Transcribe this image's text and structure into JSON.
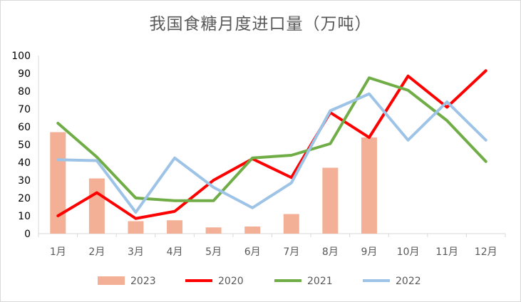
{
  "chart_data": {
    "type": "bar+line",
    "title": "我国食糖月度进口量（万吨）",
    "categories": [
      "1月",
      "2月",
      "3月",
      "4月",
      "5月",
      "6月",
      "7月",
      "8月",
      "9月",
      "10月",
      "11月",
      "12月"
    ],
    "ylim": [
      0,
      100
    ],
    "yticks": [
      0,
      10,
      20,
      30,
      40,
      50,
      60,
      70,
      80,
      90,
      100
    ],
    "grid": false,
    "legend_position": "bottom",
    "bars": {
      "name": "2023",
      "color": "#f4b096",
      "values": [
        57,
        31,
        7,
        7.5,
        3.5,
        4,
        11,
        37,
        54
      ]
    },
    "series": [
      {
        "name": "2020",
        "color": "#ff0000",
        "values": [
          10,
          23,
          8.5,
          12.5,
          30,
          42,
          31.5,
          68,
          54,
          88.5,
          71,
          91.5
        ]
      },
      {
        "name": "2021",
        "color": "#70ad47",
        "values": [
          62,
          43,
          20,
          18.5,
          18.5,
          42.5,
          44,
          50.5,
          87.5,
          80.5,
          63.5,
          40.5
        ]
      },
      {
        "name": "2022",
        "color": "#9dc3e6",
        "values": [
          41.5,
          41,
          12,
          42.5,
          26,
          14.5,
          28.5,
          69,
          78.5,
          52.5,
          74,
          52.5
        ]
      }
    ],
    "legend": [
      "2023",
      "2020",
      "2021",
      "2022"
    ]
  }
}
